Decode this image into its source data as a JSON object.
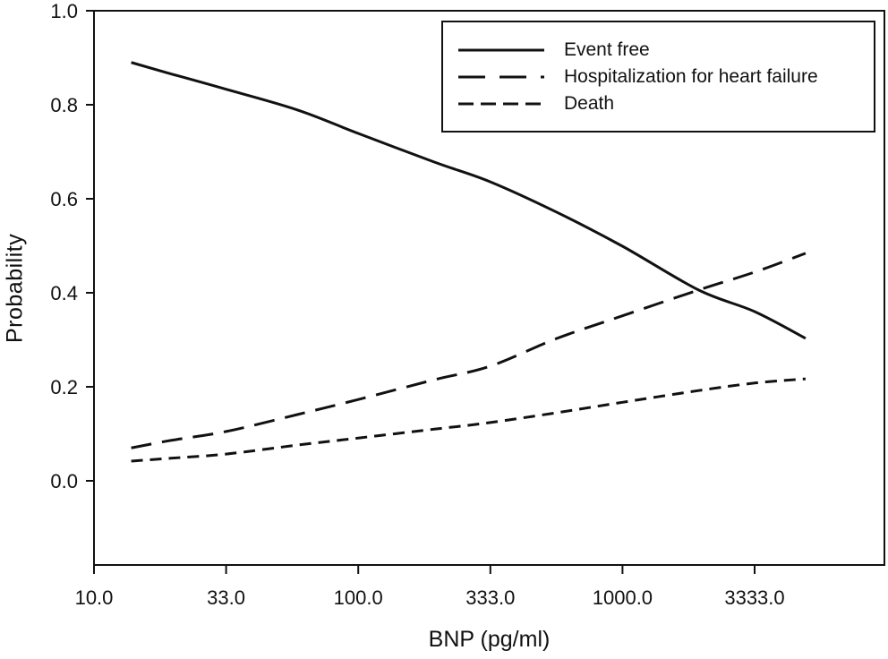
{
  "figure": {
    "background": "#ffffff",
    "ink_color": "#111111"
  },
  "chart_data": {
    "type": "line",
    "x_scale": "log",
    "xlabel": "BNP (pg/ml)",
    "ylabel": "Probability",
    "x_ticks": [
      10.0,
      33.0,
      100.0,
      333.0,
      1000.0,
      3333.0
    ],
    "x_tick_labels": [
      "10.0",
      "33.0",
      "100.0",
      "333.0",
      "1000.0",
      "3333.0"
    ],
    "y_ticks": [
      0.0,
      0.2,
      0.4,
      0.6,
      0.8,
      1.0
    ],
    "y_tick_labels": [
      "0.0",
      "0.2",
      "0.4",
      "0.6",
      "0.8",
      "1.0"
    ],
    "ylim": [
      -0.18,
      1.0
    ],
    "xlim": [
      10,
      7000
    ],
    "grid": false,
    "legend_position": "top-right",
    "x": [
      14,
      20,
      33,
      60,
      100,
      200,
      333,
      580,
      1000,
      2000,
      3333,
      5300
    ],
    "series": [
      {
        "name": "Event free",
        "line_style": "solid",
        "values": [
          0.89,
          0.866,
          0.833,
          0.789,
          0.739,
          0.678,
          0.636,
          0.571,
          0.499,
          0.406,
          0.36,
          0.303
        ]
      },
      {
        "name": "Hospitalization for heart failure",
        "line_style": "long-dash",
        "values": [
          0.07,
          0.086,
          0.105,
          0.141,
          0.173,
          0.215,
          0.244,
          0.303,
          0.351,
          0.406,
          0.444,
          0.484
        ]
      },
      {
        "name": "Death",
        "line_style": "short-dash",
        "values": [
          0.042,
          0.048,
          0.057,
          0.076,
          0.091,
          0.11,
          0.124,
          0.145,
          0.167,
          0.192,
          0.208,
          0.217
        ]
      }
    ]
  }
}
